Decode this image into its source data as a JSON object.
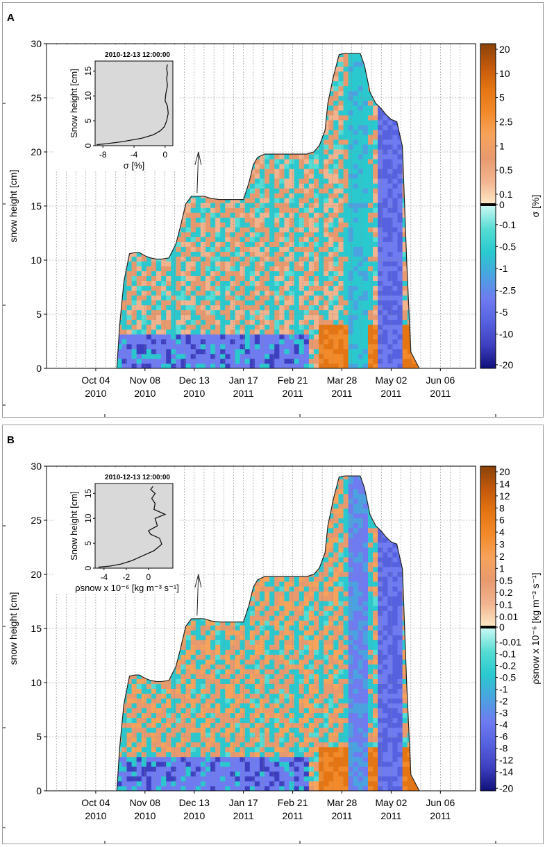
{
  "colors": {
    "orange_scale": [
      "#fde8c6",
      "#f2b48f",
      "#e89a6e",
      "#f7a35c",
      "#f28a2a",
      "#e57512",
      "#c2580c",
      "#8a4208"
    ],
    "blue_scale": [
      "#c8f7f3",
      "#55dcd4",
      "#29c9cf",
      "#4aa3e0",
      "#6f7bf0",
      "#5661e0",
      "#3d3fc0",
      "#10107a"
    ],
    "grid": "#8a8a8a",
    "inset_bg": "#d9d9d9"
  },
  "chart_data": [
    {
      "panel_label": "A",
      "type": "heatmap",
      "ylabel": "snow height [cm]",
      "ylim": [
        0,
        30
      ],
      "yticks": [
        "0",
        "5",
        "10",
        "15",
        "20",
        "25",
        "30"
      ],
      "xtick_labels": [
        [
          "Oct 04",
          "2010"
        ],
        [
          "Nov 08",
          "2010"
        ],
        [
          "Dec 13",
          "2010"
        ],
        [
          "Jan 17",
          "2011"
        ],
        [
          "Feb 21",
          "2011"
        ],
        [
          "Mar 28",
          "2011"
        ],
        [
          "May 02",
          "2011"
        ],
        [
          "Jun 06",
          "2011"
        ]
      ],
      "xtick_days": [
        0,
        35,
        70,
        105,
        140,
        175,
        210,
        245
      ],
      "snow_height_line": {
        "days": [
          15,
          17,
          20,
          24,
          28,
          31,
          35,
          39,
          43,
          47,
          52,
          57,
          60,
          64,
          68,
          72,
          77,
          82,
          88,
          94,
          100,
          105,
          109,
          112,
          115,
          120,
          125,
          130,
          135,
          140,
          145,
          150,
          155,
          159,
          163,
          165,
          169,
          173,
          177,
          181,
          185,
          188,
          191,
          195,
          199,
          203,
          206,
          210,
          214,
          218,
          221,
          224,
          230
        ],
        "values": [
          0,
          4,
          8,
          10.6,
          10.7,
          10.7,
          10.4,
          10.2,
          10.1,
          10.1,
          10.2,
          11.5,
          13.0,
          15.2,
          15.9,
          15.9,
          15.9,
          15.7,
          15.6,
          15.6,
          15.6,
          15.6,
          17.2,
          18.8,
          19.5,
          19.8,
          19.8,
          19.8,
          19.8,
          19.8,
          19.8,
          19.8,
          20.0,
          20.6,
          22.0,
          24.5,
          27.0,
          29.0,
          29.1,
          29.1,
          29.1,
          29.1,
          28.0,
          25.5,
          24.5,
          24.0,
          23.5,
          23.0,
          22.8,
          20.5,
          10.0,
          1.5,
          0
        ]
      },
      "arrow_day": 73,
      "colorbar": {
        "label": "σ [%]",
        "positive_ticks": [
          "20",
          "10",
          "5",
          "2.5",
          "1",
          "0.5",
          "0.1",
          "0"
        ],
        "negative_ticks": [
          "-0.1",
          "-0.5",
          "-1",
          "-2.5",
          "-5",
          "-10",
          "-20"
        ]
      },
      "inset": {
        "title": "2010-12-13 12:00:00",
        "ylabel": "Snow height [cm]",
        "xlabel": "σ [%]",
        "xlim": [
          -9,
          1
        ],
        "ylim": [
          0,
          17
        ],
        "xticks": [
          "-8",
          "-4",
          "0"
        ],
        "yticks": [
          "0",
          "5",
          "10",
          "15"
        ],
        "profile_x": [
          -8.8,
          -7.5,
          -5.5,
          -3.0,
          -1.5,
          -0.6,
          -0.1,
          0.2,
          0.4,
          0.3,
          0.0,
          0.1,
          0.3,
          0.2,
          0.3,
          0.2,
          0.3
        ],
        "profile_y": [
          0.2,
          0.4,
          0.8,
          1.5,
          2.2,
          3.0,
          3.8,
          5.0,
          6.5,
          8.0,
          9.0,
          10.5,
          12.0,
          13.5,
          14.5,
          15.5,
          16.3
        ]
      }
    },
    {
      "panel_label": "B",
      "type": "heatmap",
      "ylabel": "snow height [cm]",
      "ylim": [
        0,
        30
      ],
      "yticks": [
        "0",
        "5",
        "10",
        "15",
        "20",
        "25",
        "30"
      ],
      "xtick_labels": [
        [
          "Oct 04",
          "2010"
        ],
        [
          "Nov 08",
          "2010"
        ],
        [
          "Dec 13",
          "2010"
        ],
        [
          "Jan 17",
          "2011"
        ],
        [
          "Feb 21",
          "2011"
        ],
        [
          "Mar 28",
          "2011"
        ],
        [
          "May 02",
          "2011"
        ],
        [
          "Jun 06",
          "2011"
        ]
      ],
      "xtick_days": [
        0,
        35,
        70,
        105,
        140,
        175,
        210,
        245
      ],
      "snow_height_line": {
        "days": [
          15,
          17,
          20,
          24,
          28,
          31,
          35,
          39,
          43,
          47,
          52,
          57,
          60,
          64,
          68,
          72,
          77,
          82,
          88,
          94,
          100,
          105,
          109,
          112,
          115,
          120,
          125,
          130,
          135,
          140,
          145,
          150,
          155,
          159,
          163,
          165,
          169,
          173,
          177,
          181,
          185,
          188,
          191,
          195,
          199,
          203,
          206,
          210,
          214,
          218,
          221,
          224,
          230
        ],
        "values": [
          0,
          4,
          8,
          10.6,
          10.7,
          10.7,
          10.4,
          10.2,
          10.1,
          10.1,
          10.2,
          11.5,
          13.0,
          15.2,
          15.9,
          15.9,
          15.9,
          15.7,
          15.6,
          15.6,
          15.6,
          15.6,
          17.2,
          18.8,
          19.5,
          19.8,
          19.8,
          19.8,
          19.8,
          19.8,
          19.8,
          19.8,
          20.0,
          20.6,
          22.0,
          24.5,
          27.0,
          29.0,
          29.1,
          29.1,
          29.1,
          29.1,
          28.0,
          25.5,
          24.5,
          24.0,
          23.5,
          23.0,
          22.8,
          20.5,
          10.0,
          1.5,
          0
        ]
      },
      "arrow_day": 73,
      "colorbar": {
        "label": "ρ̇snow x 10⁻⁶ [kg m⁻³ s⁻¹]",
        "positive_ticks": [
          "20",
          "14",
          "12",
          "8",
          "6",
          "4",
          "3",
          "2",
          "1",
          "0.5",
          "0.2",
          "0.1",
          "0.01",
          "0"
        ],
        "negative_ticks": [
          "-0.01",
          "-0.1",
          "-0.2",
          "-0.5",
          "-1",
          "-2",
          "-3",
          "-4",
          "-6",
          "-8",
          "-12",
          "-14",
          "-20"
        ]
      },
      "inset": {
        "title": "2010-12-13 12:00:00",
        "ylabel": "Snow height [cm]",
        "xlabel": "ρ̇snow x 10⁻⁶ [kg m⁻³ s⁻¹]",
        "xlim": [
          -4.8,
          2.2
        ],
        "ylim": [
          0,
          17
        ],
        "xticks": [
          "-4",
          "-2",
          "0"
        ],
        "yticks": [
          "0",
          "5",
          "10",
          "15"
        ],
        "profile_x": [
          -4.5,
          -3.5,
          -2.5,
          -1.5,
          -0.5,
          0.5,
          1.2,
          1.0,
          0.2,
          0.0,
          0.8,
          0.6,
          1.5,
          0.5,
          0.6,
          0.3,
          0.6,
          0.2,
          0.4
        ],
        "profile_y": [
          0.2,
          0.4,
          0.8,
          1.5,
          2.5,
          3.5,
          4.8,
          6.0,
          6.8,
          7.5,
          8.5,
          10.0,
          10.8,
          11.8,
          13.0,
          14.0,
          15.0,
          15.8,
          16.4
        ]
      }
    }
  ]
}
